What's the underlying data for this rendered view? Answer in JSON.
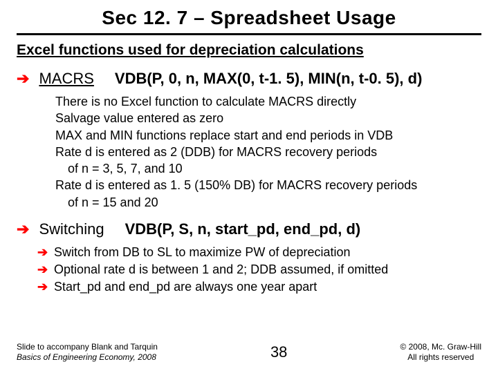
{
  "title": "Sec 12. 7 – Spreadsheet Usage",
  "subtitle": "Excel functions used for depreciation calculations",
  "macrs": {
    "label": "MACRS",
    "formula": "VDB(P, 0, n, MAX(0, t-1. 5), MIN(n, t-0. 5), d)",
    "lines": {
      "l1": "There is no Excel function to calculate MACRS directly",
      "l2": "Salvage value entered as zero",
      "l3": "MAX and MIN functions replace start and end periods in VDB",
      "l4a": "Rate d is entered as 2 (DDB) for MACRS recovery periods",
      "l4b": "of n = 3, 5, 7, and 10",
      "l5a": "Rate d is entered as 1. 5 (150% DB) for MACRS recovery periods",
      "l5b": "of n = 15 and 20"
    }
  },
  "switching": {
    "label": "Switching",
    "formula": "VDB(P, S, n, start_pd, end_pd, d)",
    "lines": {
      "l1": "Switch from DB to SL to maximize PW of depreciation",
      "l2": "Optional rate d is between 1 and 2; DDB assumed, if omitted",
      "l3": "Start_pd and end_pd are always one year apart"
    }
  },
  "footer": {
    "left1": "Slide to accompany Blank and Tarquin",
    "left2": "Basics of Engineering Economy, 2008",
    "page": "38",
    "right1": "© 2008, Mc. Graw-Hill",
    "right2": "All rights reserved"
  }
}
